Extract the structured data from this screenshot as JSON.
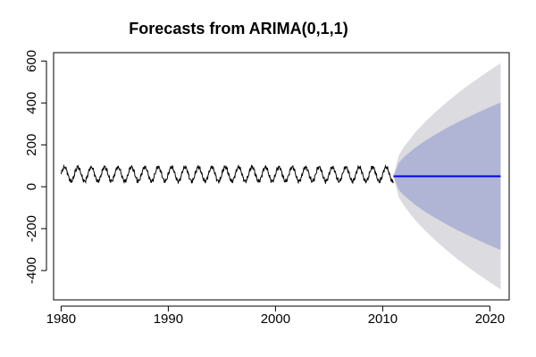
{
  "chart_data": {
    "type": "line",
    "title": "Forecasts from ARIMA(0,1,1)",
    "xlabel": "",
    "ylabel": "",
    "xlim": [
      1979.3,
      2021.8
    ],
    "ylim": [
      -540,
      640
    ],
    "x_ticks": [
      1980,
      1990,
      2000,
      2010,
      2020
    ],
    "y_ticks": [
      -400,
      -200,
      0,
      200,
      400,
      600
    ],
    "grid": false,
    "legend": "none",
    "series": [
      {
        "kind": "observed",
        "start": 1980.0,
        "end": 2011.0,
        "seasonal_period_years": 1.25,
        "mean": 60,
        "min": 5,
        "max": 100,
        "color": "#000000"
      },
      {
        "kind": "point_forecast",
        "x": [
          2011.0,
          2021.0
        ],
        "y": [
          50,
          50
        ],
        "color": "#0000ee"
      }
    ],
    "intervals": [
      {
        "level": "95%",
        "x": [
          2011.0,
          2011.5,
          2012,
          2013,
          2014,
          2015,
          2016,
          2017,
          2018,
          2019,
          2020,
          2021.0
        ],
        "upper": [
          50,
          150,
          192,
          257,
          312,
          360,
          405,
          446,
          485,
          521,
          556,
          590
        ],
        "lower": [
          50,
          -50,
          -92,
          -157,
          -212,
          -260,
          -305,
          -346,
          -385,
          -421,
          -456,
          -490
        ],
        "color": "#dbdbe0"
      },
      {
        "level": "80%",
        "x": [
          2011.0,
          2011.5,
          2012,
          2013,
          2014,
          2015,
          2016,
          2017,
          2018,
          2019,
          2020,
          2021.0
        ],
        "upper": [
          50,
          115,
          142,
          185,
          221,
          252,
          281,
          308,
          333,
          357,
          380,
          402
        ],
        "lower": [
          50,
          -15,
          -42,
          -85,
          -121,
          -152,
          -181,
          -208,
          -233,
          -257,
          -280,
          -302
        ],
        "color": "#b0b5d6"
      }
    ]
  }
}
